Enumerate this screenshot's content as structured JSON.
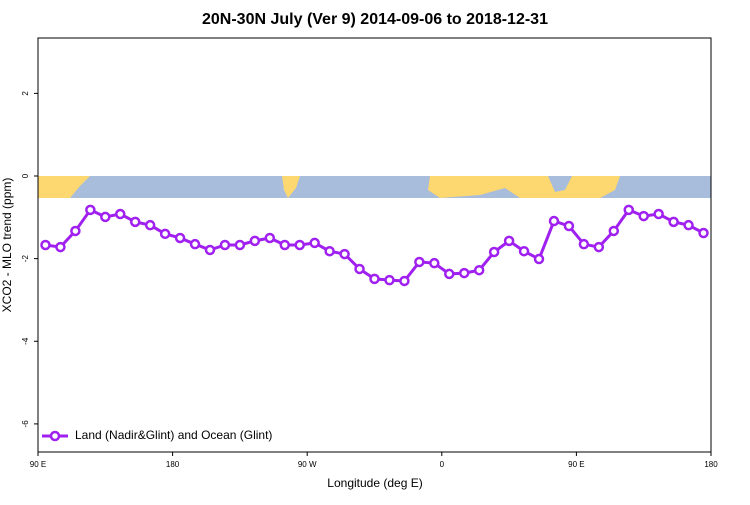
{
  "chart_data": {
    "type": "line",
    "title": "20N-30N July (Ver 9)   2014-09-06 to 2018-12-31",
    "x_label": "Longitude (deg E)",
    "y_label": "XCO2 - MLO trend (ppm)",
    "xlim": [
      90,
      540
    ],
    "ylim": [
      -6.68,
      3.34
    ],
    "xticks": [
      {
        "value": 90,
        "label": "90 E"
      },
      {
        "value": 180,
        "label": "180"
      },
      {
        "value": 270,
        "label": "90 W"
      },
      {
        "value": 360,
        "label": "0"
      },
      {
        "value": 450,
        "label": "90 E"
      },
      {
        "value": 540,
        "label": "180"
      }
    ],
    "yticks": [
      -6,
      -4,
      -2,
      0,
      2
    ],
    "x": [
      95,
      105,
      115,
      125,
      135,
      145,
      155,
      165,
      175,
      185,
      195,
      205,
      215,
      225,
      235,
      245,
      255,
      265,
      275,
      285,
      295,
      305,
      315,
      325,
      335,
      345,
      355,
      365,
      375,
      385,
      395,
      405,
      415,
      425,
      435,
      445,
      455,
      465,
      475,
      485,
      495,
      505,
      515,
      525,
      535
    ],
    "series": [
      {
        "name": "Land (Nadir&Glint) and Ocean (Glint)",
        "color": "#a020f0",
        "values": [
          -1.67,
          -1.72,
          -1.33,
          -0.82,
          -0.99,
          -0.92,
          -1.11,
          -1.19,
          -1.4,
          -1.5,
          -1.65,
          -1.79,
          -1.67,
          -1.67,
          -1.57,
          -1.5,
          -1.67,
          -1.67,
          -1.62,
          -1.82,
          -1.89,
          -2.25,
          -2.49,
          -2.52,
          -2.54,
          -2.08,
          -2.11,
          -2.37,
          -2.35,
          -2.28,
          -1.84,
          -1.57,
          -1.82,
          -2.01,
          -1.09,
          -1.21,
          -1.65,
          -1.72,
          -1.33,
          -0.82,
          -0.97,
          -0.92,
          -1.11,
          -1.19,
          -1.38
        ]
      }
    ],
    "legend": "bottom-left"
  }
}
